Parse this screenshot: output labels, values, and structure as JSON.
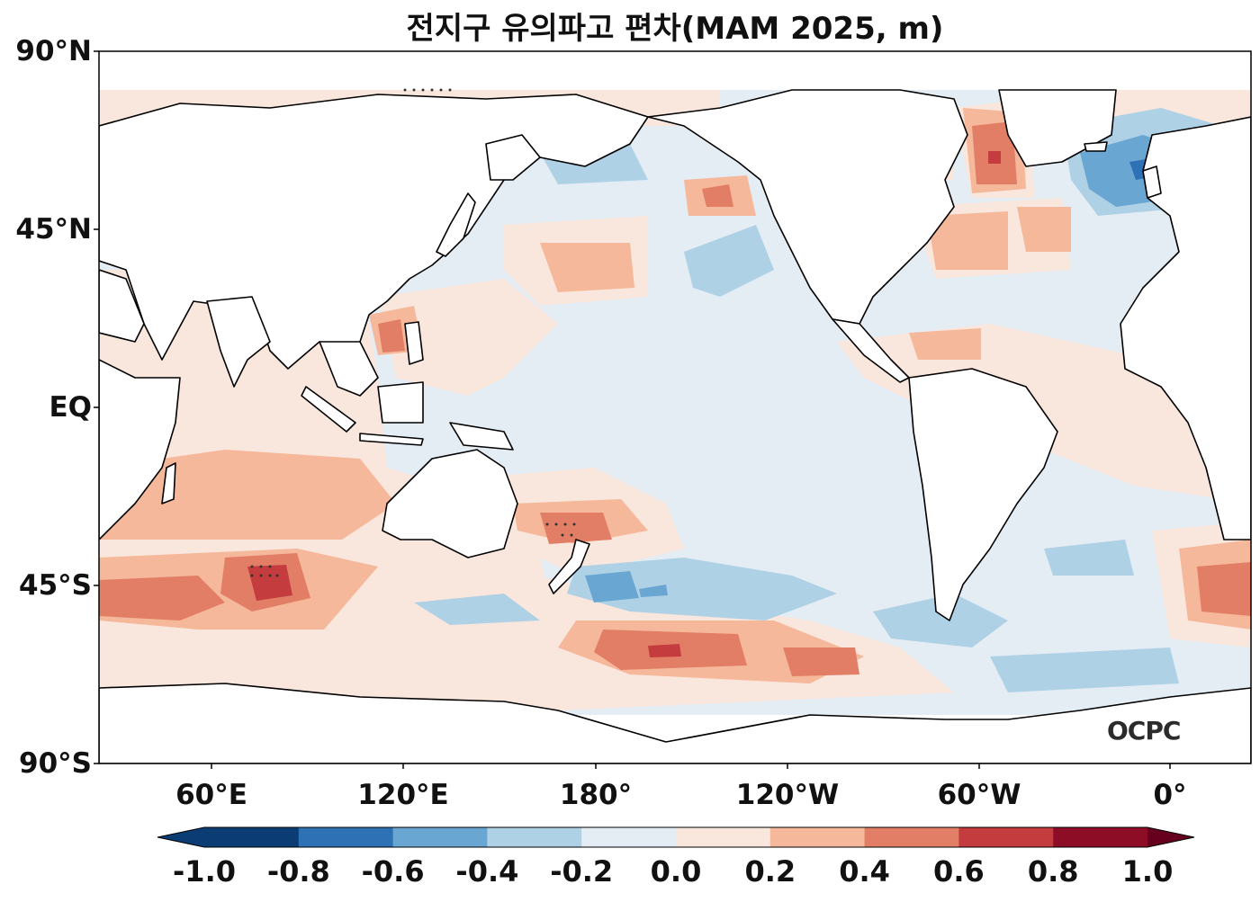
{
  "title": "전지구 유의파고 편차(MAM 2025, m)",
  "logo_text": "OCPC",
  "lat_ticks": [
    "90°N",
    "45°N",
    "EQ",
    "45°S",
    "90°S"
  ],
  "lon_ticks": [
    "60°E",
    "120°E",
    "180°",
    "120°W",
    "60°W",
    "0°"
  ],
  "colorbar": {
    "levels": [
      "-1.0",
      "-0.8",
      "-0.6",
      "-0.4",
      "-0.2",
      "0.0",
      "0.2",
      "0.4",
      "0.6",
      "0.8",
      "1.0"
    ],
    "colors": [
      "#0b3d74",
      "#2e72b5",
      "#69a6d1",
      "#afd1e6",
      "#e4ecf4",
      "#f9e6dc",
      "#f6b89a",
      "#e27e66",
      "#c43c3d",
      "#8c0d25",
      "#67001f"
    ],
    "extend": "both"
  },
  "chart_data": {
    "type": "heatmap",
    "projection": "PlateCarree, central longitude 200°",
    "variable": "유의파고 편차 (significant wave height anomaly)",
    "unit": "m",
    "period": "MAM 2025",
    "lat_range": [
      -90,
      90
    ],
    "lon_range": [
      30,
      390
    ],
    "colorbar_range": [
      -1.0,
      1.0
    ],
    "colorbar_step": 0.2,
    "anomaly_features": [
      {
        "region": "Southern Indian Ocean near 45°S, 75°E",
        "value": 0.6,
        "stippled": true
      },
      {
        "region": "Tasman Sea near 30°S, 170°E",
        "value": 0.4,
        "stippled": true
      },
      {
        "region": "South Pacific near 60°S, 150°W",
        "value": 0.6,
        "stippled": false
      },
      {
        "region": "Labrador Sea near 60°N, 55°W",
        "value": 0.6,
        "stippled": false
      },
      {
        "region": "South Atlantic near 45°S, 5°W",
        "value": 0.4,
        "stippled": false
      },
      {
        "region": "Northeast Atlantic near 55°N, 25°W",
        "value": -0.6,
        "stippled": false
      },
      {
        "region": "Southwest Pacific near 45°S, 170°W",
        "value": -0.4,
        "stippled": false
      },
      {
        "region": "Tropical and Central Pacific",
        "value": -0.1,
        "stippled": false
      },
      {
        "region": "North Pacific near 45°N, 150°W",
        "value": 0.4,
        "stippled": false
      }
    ]
  }
}
